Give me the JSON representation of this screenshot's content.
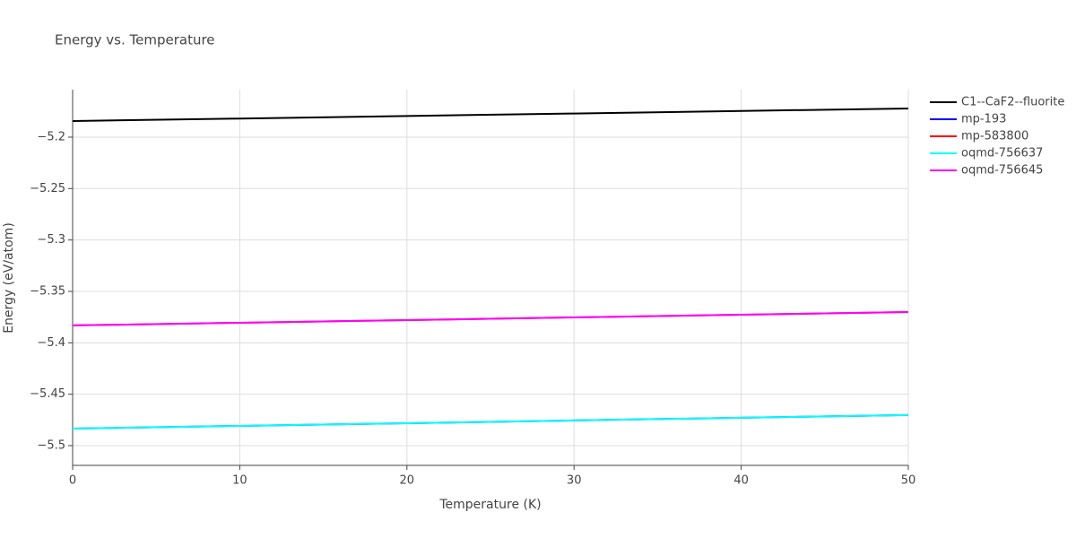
{
  "chart_data": {
    "type": "line",
    "title": "Energy vs. Temperature",
    "x_label": "Temperature (K)",
    "y_label": "Energy (eV/atom)",
    "x": [
      0,
      10,
      20,
      30,
      40,
      50
    ],
    "xlim": [
      0,
      50
    ],
    "xticks": [
      0,
      10,
      20,
      30,
      40,
      50
    ],
    "ylim": [
      -5.5192,
      -5.1538
    ],
    "yticks": [
      {
        "value": -5.5,
        "label": "−5.5"
      },
      {
        "value": -5.45,
        "label": "−5.45"
      },
      {
        "value": -5.4,
        "label": "−5.4"
      },
      {
        "value": -5.35,
        "label": "−5.35"
      },
      {
        "value": -5.3,
        "label": "−5.3"
      },
      {
        "value": -5.25,
        "label": "−5.25"
      },
      {
        "value": -5.2,
        "label": "−5.2"
      }
    ],
    "grid": true,
    "series": [
      {
        "name": "C1--CaF2--fluorite",
        "color": "#000000",
        "values": [
          -5.1843,
          -5.1819,
          -5.1794,
          -5.177,
          -5.1745,
          -5.1721
        ]
      },
      {
        "name": "mp-193",
        "color": "#0000ff",
        "values": [
          -5.4834,
          -5.4808,
          -5.4782,
          -5.4755,
          -5.4729,
          -5.4703
        ]
      },
      {
        "name": "mp-583800",
        "color": "#ff0000",
        "values": [
          -5.3831,
          -5.3805,
          -5.3779,
          -5.3753,
          -5.3727,
          -5.3701
        ]
      },
      {
        "name": "oqmd-756637",
        "color": "#00ffff",
        "values": [
          -5.4834,
          -5.4808,
          -5.4782,
          -5.4755,
          -5.4729,
          -5.4703
        ]
      },
      {
        "name": "oqmd-756645",
        "color": "#ff00ff",
        "values": [
          -5.3831,
          -5.3805,
          -5.3779,
          -5.3753,
          -5.3727,
          -5.3701
        ]
      }
    ]
  }
}
